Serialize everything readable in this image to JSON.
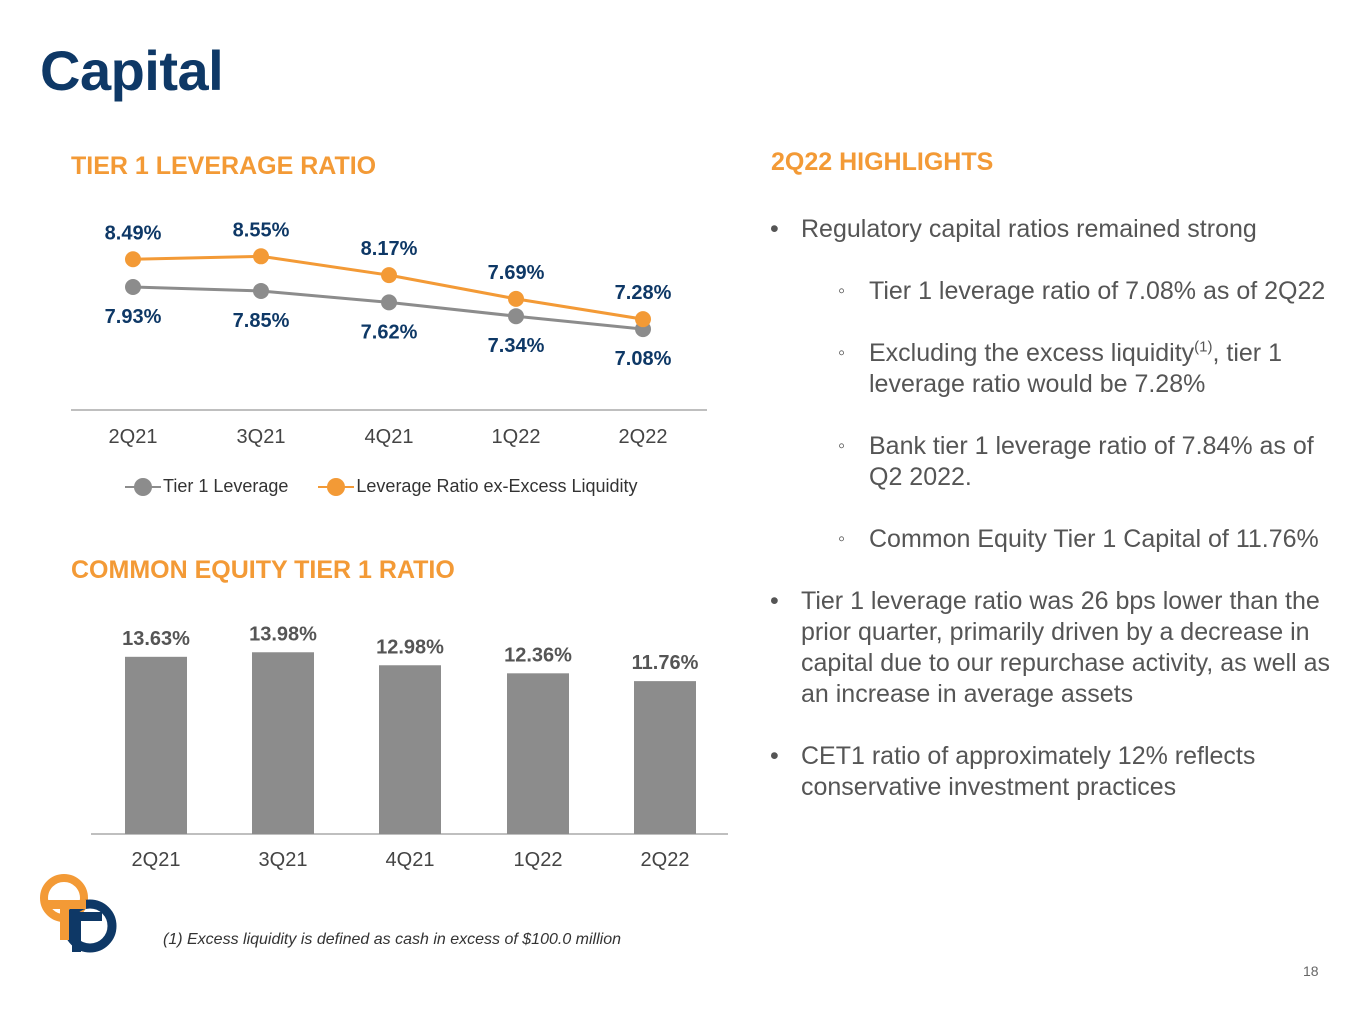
{
  "page": {
    "title": "Capital",
    "page_number": "18",
    "footnote": "(1) Excess liquidity is defined as cash in excess of $100.0 million"
  },
  "colors": {
    "title": "#0e3866",
    "section_heading": "#f39a36",
    "series_gray": "#8c8c8c",
    "series_orange": "#f39a36",
    "label_navy": "#0e3866",
    "bar_label": "#555555"
  },
  "sections": {
    "leverage_title": "TIER 1 LEVERAGE RATIO",
    "cet1_title": "COMMON EQUITY TIER 1 RATIO",
    "highlights_title": "2Q22 HIGHLIGHTS"
  },
  "chart_data": [
    {
      "type": "line",
      "title": "TIER 1 LEVERAGE RATIO",
      "categories": [
        "2Q21",
        "3Q21",
        "4Q21",
        "1Q22",
        "2Q22"
      ],
      "series": [
        {
          "name": "Tier 1 Leverage",
          "values": [
            7.93,
            7.85,
            7.62,
            7.34,
            7.08
          ],
          "labels": [
            "7.93%",
            "7.85%",
            "7.62%",
            "7.34%",
            "7.08%"
          ],
          "color": "#8c8c8c"
        },
        {
          "name": "Leverage Ratio ex-Excess Liquidity",
          "values": [
            8.49,
            8.55,
            8.17,
            7.69,
            7.28
          ],
          "labels": [
            "8.49%",
            "8.55%",
            "8.17%",
            "7.69%",
            "7.28%"
          ],
          "color": "#f39a36"
        }
      ],
      "legend_position": "bottom",
      "grid": false
    },
    {
      "type": "bar",
      "title": "COMMON EQUITY TIER 1 RATIO",
      "categories": [
        "2Q21",
        "3Q21",
        "4Q21",
        "1Q22",
        "2Q22"
      ],
      "values": [
        13.63,
        13.98,
        12.98,
        12.36,
        11.76
      ],
      "labels": [
        "13.63%",
        "13.98%",
        "12.98%",
        "12.36%",
        "11.76%"
      ],
      "color": "#8c8c8c",
      "grid": false
    }
  ],
  "highlights": {
    "items": [
      {
        "level": 1,
        "bullet": "•",
        "text": "Regulatory capital ratios remained strong"
      },
      {
        "level": 2,
        "bullet": "◦",
        "text": "Tier 1 leverage ratio of 7.08% as of 2Q22"
      },
      {
        "level": 2,
        "bullet": "◦",
        "text_before": "Excluding the excess liquidity",
        "superscript": "(1)",
        "text_after": ", tier 1 leverage ratio would be 7.28%"
      },
      {
        "level": 2,
        "bullet": "◦",
        "text": "Bank tier 1 leverage ratio of 7.84% as of Q2 2022."
      },
      {
        "level": 2,
        "bullet": "◦",
        "text": "Common Equity Tier 1 Capital of 11.76%"
      },
      {
        "level": 1,
        "bullet": "•",
        "text": "Tier 1 leverage ratio was 26 bps lower than the prior quarter, primarily driven by a decrease in capital due to our repurchase activity, as well as an increase in average assets"
      },
      {
        "level": 1,
        "bullet": "•",
        "text": "CET1 ratio of approximately 12% reflects conservative investment practices"
      }
    ]
  }
}
